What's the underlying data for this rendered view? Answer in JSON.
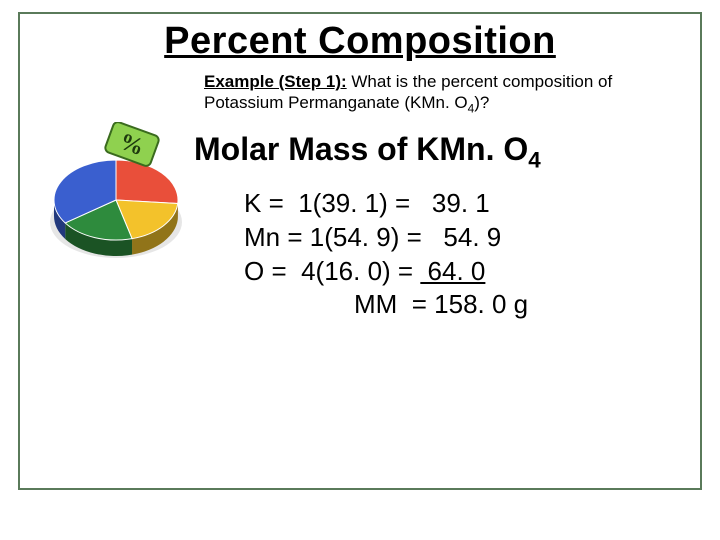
{
  "title": "Percent Composition",
  "example": {
    "label": "Example (Step 1):",
    "text_before": " What is the percent composition of Potassium Permanganate (KMn. O",
    "sub": "4",
    "text_after": ")?"
  },
  "subhead": {
    "prefix": "Molar Mass of KMn. O",
    "sub": "4"
  },
  "calc": {
    "rows": [
      {
        "el": "K = ",
        "mid": " 1(39. 1) = ",
        "val": "  39. 1"
      },
      {
        "el": "Mn = ",
        "mid": "1(54. 9) = ",
        "val": "  54. 9"
      },
      {
        "el": "O = ",
        "mid": " 4(16. 0) = ",
        "val": " 64. 0",
        "underline": true
      }
    ],
    "mm": "MM  = 158. 0 g"
  },
  "pie": {
    "slices": [
      {
        "color": "#e94f3a",
        "start": 0,
        "end": 95
      },
      {
        "color": "#f3c22b",
        "start": 95,
        "end": 165
      },
      {
        "color": "#2e8b3d",
        "start": 165,
        "end": 235
      },
      {
        "color": "#3a5fcf",
        "start": 235,
        "end": 360
      }
    ],
    "percent_tag_color": "#8fd14f",
    "shadow_color": "#b8b8b8",
    "bg": "#ffffff"
  },
  "colors": {
    "border": "#5a7a5a",
    "text": "#000000"
  }
}
